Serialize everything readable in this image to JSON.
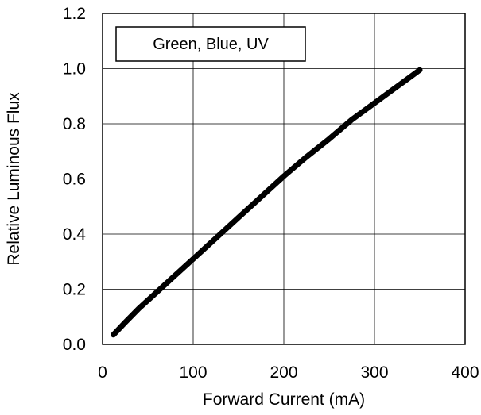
{
  "chart_data": {
    "type": "line",
    "title": "",
    "xlabel": "Forward Current (mA)",
    "ylabel": "Relative Luminous Flux",
    "xlim": [
      0,
      400
    ],
    "ylim": [
      0,
      1.2
    ],
    "xticks": [
      "0",
      "100",
      "200",
      "300",
      "400"
    ],
    "yticks": [
      "0.0",
      "0.2",
      "0.4",
      "0.6",
      "0.8",
      "1.0",
      "1.2"
    ],
    "grid": true,
    "legend_position": "top-left",
    "series": [
      {
        "name": "Green, Blue, UV",
        "color": "#000000",
        "x": [
          12,
          25,
          40,
          60,
          80,
          100,
          125,
          150,
          175,
          200,
          225,
          250,
          275,
          300,
          325,
          350
        ],
        "y": [
          0.035,
          0.08,
          0.13,
          0.19,
          0.25,
          0.31,
          0.385,
          0.46,
          0.535,
          0.61,
          0.68,
          0.745,
          0.815,
          0.875,
          0.935,
          0.995
        ]
      }
    ]
  }
}
